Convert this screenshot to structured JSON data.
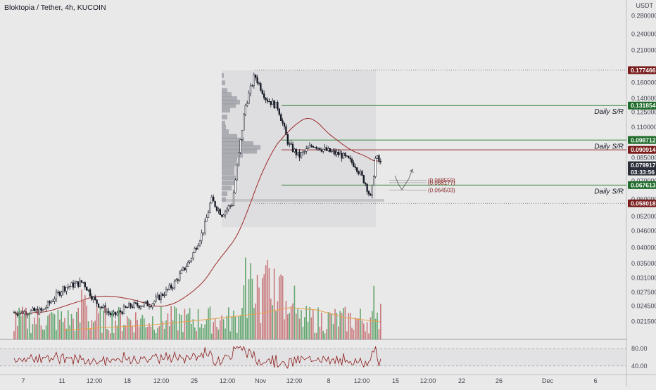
{
  "header": {
    "title": "Bloktopia / Tether, 4h, KUCOIN"
  },
  "chart_data": {
    "type": "candlestick",
    "symbol": "Bloktopia / Tether",
    "timeframe": "4h",
    "exchange": "KUCOIN",
    "currency_label": "USDT",
    "y_scale": "log",
    "ylim": [
      0.0185,
      0.32
    ],
    "price_ticks": [
      "0.280000",
      "0.240000",
      "0.210000",
      "0.160000",
      "0.140000",
      "0.125000",
      "0.110000",
      "0.085000",
      "0.070000",
      "0.060000",
      "0.052000",
      "0.046000",
      "0.040000",
      "0.035000",
      "0.031000",
      "0.027500",
      "0.024500",
      "0.021500"
    ],
    "time_ticks": [
      "7",
      "11",
      "12:00",
      "18",
      "12:00",
      "25",
      "12:00",
      "Nov",
      "12:00",
      "8",
      "12:00",
      "15",
      "12:00",
      "22",
      "26",
      "Dec",
      "6"
    ],
    "price_tags": [
      {
        "label": "0.177466",
        "color": "#7a1d1d"
      },
      {
        "label": "0.131854",
        "color": "#1e6b2a"
      },
      {
        "label": "0.098712",
        "color": "#1e6b2a"
      },
      {
        "label": "0.090914",
        "color": "#7a1d1d"
      },
      {
        "label": "0.079917",
        "color": "#2a2e39",
        "sub": "03:33:56"
      },
      {
        "label": "0.067613",
        "color": "#1e6b2a"
      },
      {
        "label": "0.058018",
        "color": "#7a1d1d"
      }
    ],
    "levels": [
      {
        "price": 0.177466,
        "color": "#888888",
        "style": "dotted",
        "text": ""
      },
      {
        "price": 0.131854,
        "color": "#2e7d32",
        "style": "solid",
        "text": "Daily S/R"
      },
      {
        "price": 0.098712,
        "color": "#2e7d32",
        "style": "solid",
        "text": "Daily S/R"
      },
      {
        "price": 0.090914,
        "color": "#8b1a1a",
        "style": "solid",
        "text": ""
      },
      {
        "price": 0.067613,
        "color": "#2e7d32",
        "style": "solid",
        "text": "Daily S/R"
      },
      {
        "price": 0.058018,
        "color": "#888888",
        "style": "dotted",
        "text": ""
      }
    ],
    "fib_labels": [
      "(0.068559)",
      "(0.068177)",
      "(0.064503)"
    ],
    "rsi": {
      "levels": [
        80,
        40
      ],
      "ticks": [
        "80.00",
        "40.00"
      ]
    }
  }
}
